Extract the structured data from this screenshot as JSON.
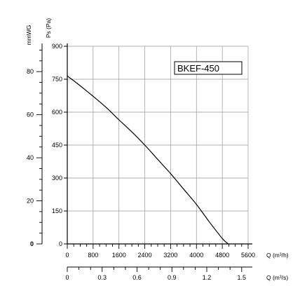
{
  "chart_data": {
    "type": "line",
    "title": "",
    "model_label": "BKEF-450",
    "y_left_label": "mmWG",
    "y_label": "Ps (Pa)",
    "x_label": "Q (m³/h)",
    "x2_label": "Q (m³/s)",
    "xlim": [
      0,
      5600
    ],
    "ylim": [
      0,
      900
    ],
    "x_ticks": [
      "0",
      "800",
      "1600",
      "2400",
      "3200",
      "4000",
      "4800",
      "5600"
    ],
    "y_ticks": [
      "0",
      "150",
      "300",
      "450",
      "600",
      "750",
      "900"
    ],
    "mm_ticks": [
      "0",
      "20",
      "40",
      "60",
      "80"
    ],
    "x2_ticks": [
      "0",
      "0.3",
      "0.6",
      "0.9",
      "1.2",
      "1.5"
    ],
    "grid": true,
    "series": [
      {
        "name": "",
        "x": [
          0,
          400,
          800,
          1200,
          1600,
          2000,
          2400,
          2800,
          3200,
          3600,
          4000,
          4400,
          4800,
          4980
        ],
        "y": [
          765,
          720,
          672,
          622,
          565,
          510,
          450,
          385,
          320,
          250,
          180,
          100,
          25,
          0
        ]
      }
    ]
  }
}
